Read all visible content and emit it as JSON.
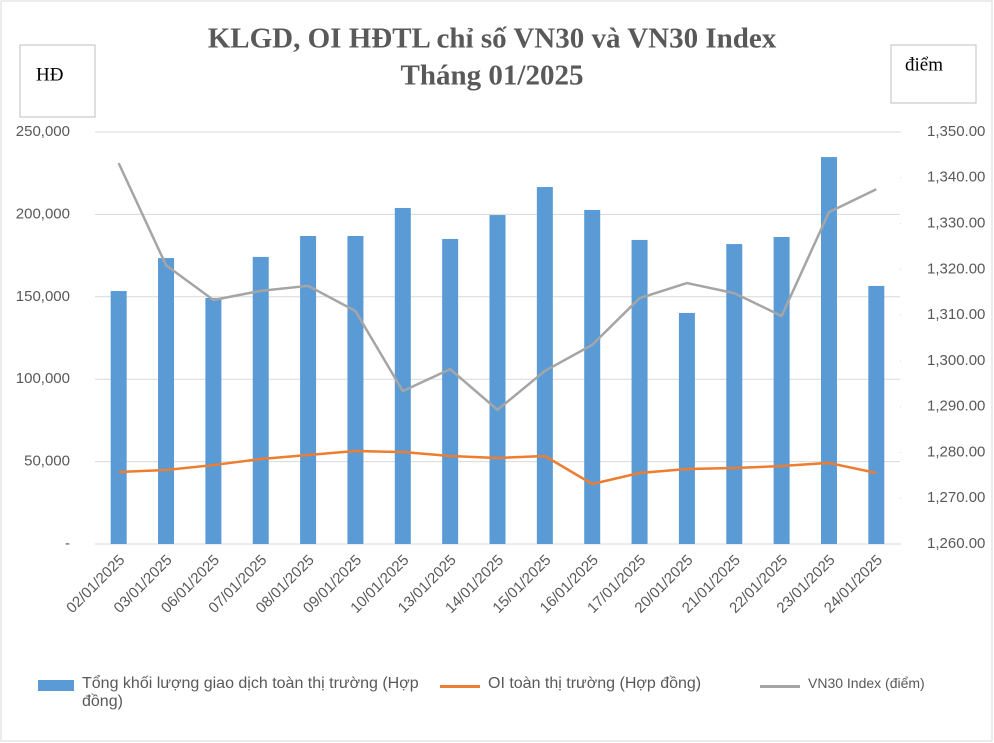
{
  "chart_data": {
    "type": "bar",
    "title": "KLGD, OI HĐTL chỉ số VN30 và VN30 Index",
    "subtitle": "Tháng 01/2025",
    "y_label": "HĐ",
    "y2_label": "điểm",
    "categories": [
      "02/01/2025",
      "03/01/2025",
      "06/01/2025",
      "07/01/2025",
      "08/01/2025",
      "09/01/2025",
      "10/01/2025",
      "13/01/2025",
      "14/01/2025",
      "15/01/2025",
      "16/01/2025",
      "17/01/2025",
      "20/01/2025",
      "21/01/2025",
      "22/01/2025",
      "23/01/2025",
      "24/01/2025"
    ],
    "series": [
      {
        "name": "Tổng khối lượng giao dịch toàn thị trường (Hợp đồng)",
        "type": "bar",
        "color": "#5b9bd5",
        "values": [
          153500,
          173500,
          149300,
          174200,
          186900,
          186900,
          203900,
          185100,
          199600,
          216600,
          202700,
          184500,
          140200,
          182000,
          186300,
          234800,
          156600
        ]
      },
      {
        "name": "OI toàn thị trường (Hợp đồng)",
        "type": "line",
        "color": "#ed7d31",
        "values": [
          43700,
          44900,
          47900,
          51600,
          54000,
          56400,
          55800,
          53400,
          52200,
          53400,
          36400,
          43100,
          45500,
          46100,
          47300,
          49200,
          43100
        ]
      },
      {
        "name": "VN30 Index (điểm)",
        "type": "line",
        "axis": "y2",
        "color": "#a5a5a5",
        "values": [
          1343.2,
          1320.9,
          1313.3,
          1315.3,
          1316.4,
          1310.9,
          1293.4,
          1298.2,
          1289.3,
          1297.8,
          1303.5,
          1313.7,
          1317.0,
          1314.8,
          1309.8,
          1332.5,
          1337.5
        ]
      }
    ],
    "ylim": [
      0,
      250000
    ],
    "yticks": [
      {
        "value": 0,
        "label": "-"
      },
      {
        "value": 50000,
        "label": "50,000"
      },
      {
        "value": 100000,
        "label": "100,000"
      },
      {
        "value": 150000,
        "label": "150,000"
      },
      {
        "value": 200000,
        "label": "200,000"
      },
      {
        "value": 250000,
        "label": "250,000"
      }
    ],
    "y2lim": [
      1260,
      1350
    ],
    "y2ticks": [
      {
        "value": 1260,
        "label": "1,260.00"
      },
      {
        "value": 1270,
        "label": "1,270.00"
      },
      {
        "value": 1280,
        "label": "1,280.00"
      },
      {
        "value": 1290,
        "label": "1,290.00"
      },
      {
        "value": 1300,
        "label": "1,300.00"
      },
      {
        "value": 1310,
        "label": "1,310.00"
      },
      {
        "value": 1320,
        "label": "1,320.00"
      },
      {
        "value": 1330,
        "label": "1,330.00"
      },
      {
        "value": 1340,
        "label": "1,340.00"
      },
      {
        "value": 1350,
        "label": "1,350.00"
      }
    ],
    "grid": true,
    "legend": "bottom"
  }
}
